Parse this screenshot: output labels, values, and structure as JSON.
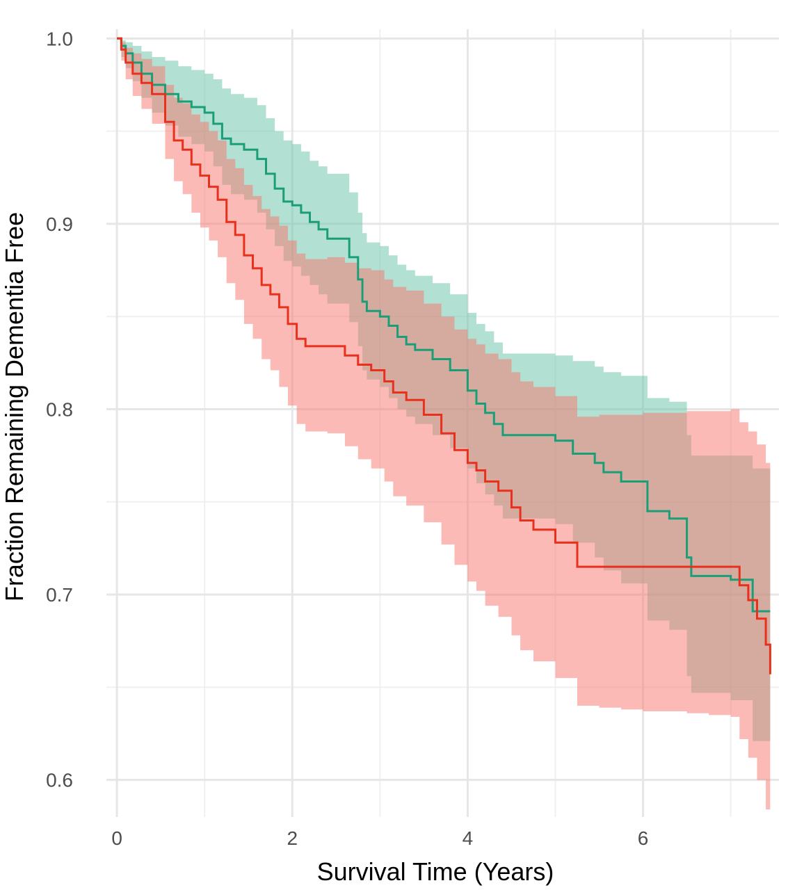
{
  "chart_data": {
    "type": "line",
    "subtype": "kaplan-meier-step",
    "xlabel": "Survival Time (Years)",
    "ylabel": "Fraction Remaining Dementia Free",
    "xlim": [
      -0.12,
      7.55
    ],
    "ylim": [
      0.58,
      1.005
    ],
    "x_ticks": [
      0,
      2,
      4,
      6
    ],
    "x_tick_labels": [
      "0",
      "2",
      "4",
      "6"
    ],
    "y_ticks": [
      0.6,
      0.7,
      0.8,
      0.9,
      1.0
    ],
    "y_tick_labels": [
      "0.6",
      "0.7",
      "0.8",
      "0.9",
      "1.0"
    ],
    "grid": true,
    "legend": "none",
    "series": [
      {
        "color": "#1b9e77",
        "band_color": "#66c2a5",
        "band_opacity": 0.5,
        "x": [
          0.0,
          0.05,
          0.1,
          0.18,
          0.28,
          0.4,
          0.55,
          0.7,
          0.85,
          1.0,
          1.1,
          1.2,
          1.3,
          1.45,
          1.6,
          1.7,
          1.8,
          1.9,
          2.0,
          2.1,
          2.2,
          2.3,
          2.4,
          2.55,
          2.65,
          2.75,
          2.8,
          2.85,
          3.0,
          3.1,
          3.2,
          3.3,
          3.4,
          3.6,
          3.8,
          4.0,
          4.1,
          4.2,
          4.3,
          4.4,
          4.45,
          4.6,
          5.0,
          5.2,
          5.45,
          5.55,
          5.75,
          6.0,
          6.05,
          6.3,
          6.5,
          6.55,
          6.8,
          7.0,
          7.25,
          7.45
        ],
        "y": [
          1.0,
          0.996,
          0.992,
          0.987,
          0.981,
          0.975,
          0.97,
          0.966,
          0.963,
          0.96,
          0.954,
          0.946,
          0.943,
          0.94,
          0.935,
          0.927,
          0.919,
          0.912,
          0.91,
          0.906,
          0.901,
          0.897,
          0.892,
          0.892,
          0.882,
          0.87,
          0.858,
          0.853,
          0.85,
          0.845,
          0.839,
          0.835,
          0.832,
          0.827,
          0.821,
          0.81,
          0.803,
          0.798,
          0.792,
          0.786,
          0.786,
          0.786,
          0.783,
          0.776,
          0.771,
          0.766,
          0.761,
          0.761,
          0.745,
          0.741,
          0.72,
          0.71,
          0.71,
          0.708,
          0.691,
          0.691
        ],
        "upper": [
          1.0,
          0.999,
          0.998,
          0.996,
          0.993,
          0.99,
          0.988,
          0.985,
          0.983,
          0.981,
          0.978,
          0.973,
          0.97,
          0.968,
          0.964,
          0.957,
          0.95,
          0.945,
          0.943,
          0.939,
          0.934,
          0.931,
          0.927,
          0.927,
          0.917,
          0.906,
          0.895,
          0.89,
          0.888,
          0.883,
          0.878,
          0.875,
          0.872,
          0.868,
          0.862,
          0.852,
          0.846,
          0.842,
          0.836,
          0.83,
          0.83,
          0.83,
          0.829,
          0.826,
          0.823,
          0.82,
          0.818,
          0.818,
          0.806,
          0.804,
          0.786,
          0.775,
          0.775,
          0.775,
          0.768,
          0.768
        ],
        "lower": [
          1.0,
          0.99,
          0.984,
          0.977,
          0.968,
          0.96,
          0.953,
          0.947,
          0.943,
          0.939,
          0.931,
          0.921,
          0.916,
          0.913,
          0.906,
          0.897,
          0.888,
          0.88,
          0.877,
          0.872,
          0.867,
          0.862,
          0.857,
          0.857,
          0.847,
          0.834,
          0.821,
          0.816,
          0.812,
          0.806,
          0.8,
          0.796,
          0.792,
          0.786,
          0.779,
          0.768,
          0.76,
          0.754,
          0.748,
          0.741,
          0.741,
          0.741,
          0.738,
          0.728,
          0.72,
          0.713,
          0.706,
          0.706,
          0.686,
          0.681,
          0.656,
          0.647,
          0.647,
          0.643,
          0.621,
          0.621
        ]
      },
      {
        "color": "#e8301c",
        "band_color": "#f8766d",
        "band_opacity": 0.5,
        "x": [
          0.0,
          0.05,
          0.1,
          0.18,
          0.28,
          0.4,
          0.55,
          0.65,
          0.75,
          0.85,
          0.95,
          1.05,
          1.15,
          1.25,
          1.35,
          1.45,
          1.55,
          1.65,
          1.75,
          1.85,
          1.95,
          2.05,
          2.15,
          2.25,
          2.4,
          2.6,
          2.75,
          2.9,
          3.05,
          3.15,
          3.3,
          3.5,
          3.7,
          3.85,
          4.0,
          4.1,
          4.2,
          4.35,
          4.5,
          4.6,
          4.75,
          5.0,
          5.25,
          5.5,
          5.75,
          6.0,
          6.5,
          6.75,
          7.0,
          7.1,
          7.2,
          7.3,
          7.4,
          7.45
        ],
        "y": [
          1.0,
          0.994,
          0.987,
          0.981,
          0.976,
          0.97,
          0.955,
          0.945,
          0.94,
          0.932,
          0.926,
          0.92,
          0.913,
          0.901,
          0.894,
          0.883,
          0.876,
          0.867,
          0.862,
          0.855,
          0.846,
          0.838,
          0.834,
          0.834,
          0.834,
          0.829,
          0.824,
          0.821,
          0.815,
          0.809,
          0.805,
          0.797,
          0.787,
          0.778,
          0.771,
          0.767,
          0.761,
          0.756,
          0.747,
          0.74,
          0.735,
          0.728,
          0.715,
          0.715,
          0.715,
          0.715,
          0.715,
          0.715,
          0.715,
          0.705,
          0.697,
          0.687,
          0.673,
          0.657
        ],
        "upper": [
          1.0,
          0.998,
          0.995,
          0.992,
          0.989,
          0.985,
          0.975,
          0.968,
          0.965,
          0.959,
          0.955,
          0.95,
          0.945,
          0.935,
          0.93,
          0.921,
          0.915,
          0.908,
          0.904,
          0.899,
          0.891,
          0.884,
          0.881,
          0.881,
          0.882,
          0.879,
          0.876,
          0.875,
          0.87,
          0.866,
          0.864,
          0.857,
          0.85,
          0.843,
          0.838,
          0.835,
          0.83,
          0.827,
          0.82,
          0.815,
          0.812,
          0.807,
          0.796,
          0.797,
          0.797,
          0.798,
          0.799,
          0.799,
          0.8,
          0.793,
          0.788,
          0.781,
          0.771,
          0.76
        ],
        "lower": [
          1.0,
          0.988,
          0.978,
          0.969,
          0.962,
          0.954,
          0.935,
          0.923,
          0.916,
          0.906,
          0.898,
          0.891,
          0.882,
          0.868,
          0.859,
          0.846,
          0.838,
          0.827,
          0.821,
          0.812,
          0.802,
          0.792,
          0.788,
          0.788,
          0.787,
          0.78,
          0.773,
          0.768,
          0.761,
          0.753,
          0.748,
          0.739,
          0.727,
          0.716,
          0.707,
          0.702,
          0.694,
          0.688,
          0.678,
          0.67,
          0.664,
          0.655,
          0.64,
          0.639,
          0.638,
          0.637,
          0.636,
          0.635,
          0.634,
          0.622,
          0.612,
          0.6,
          0.584,
          0.566
        ]
      }
    ]
  }
}
